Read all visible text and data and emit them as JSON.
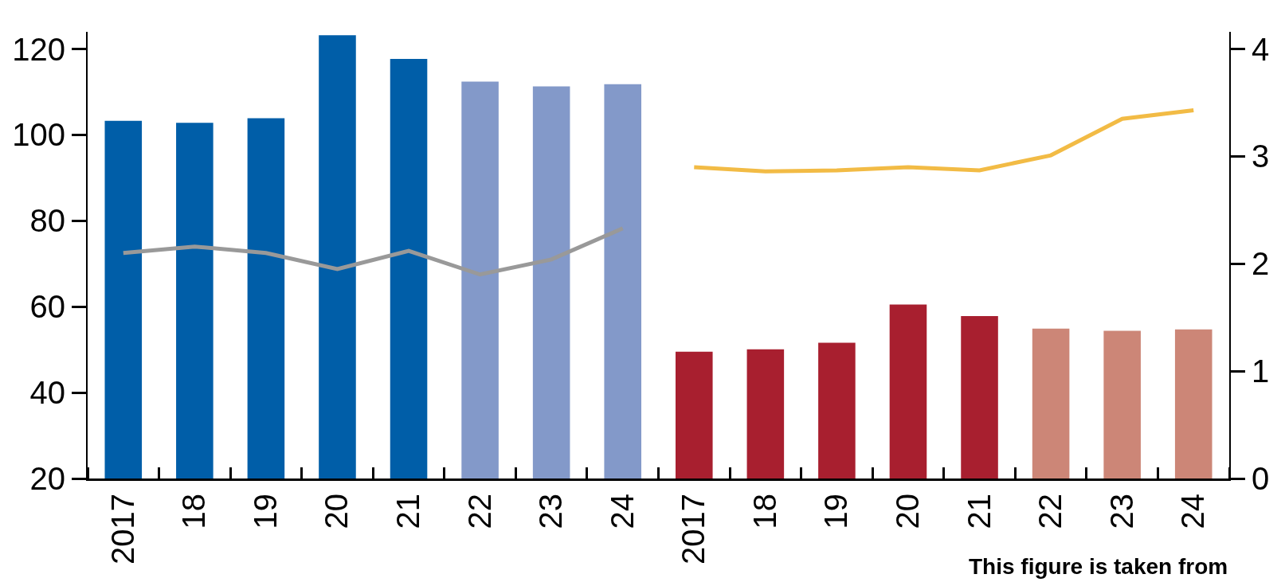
{
  "chart_data": {
    "type": "bar",
    "categories": [
      "2017",
      "18",
      "19",
      "20",
      "21",
      "22",
      "23",
      "24",
      "2017",
      "18",
      "19",
      "20",
      "21",
      "22",
      "23",
      "24"
    ],
    "series": [
      {
        "type": "bar",
        "colors": [
          "#005ea8",
          "#005ea8",
          "#005ea8",
          "#005ea8",
          "#005ea8",
          "#8399c9",
          "#8399c9",
          "#8399c9",
          "#a81f2f",
          "#a81f2f",
          "#a81f2f",
          "#a81f2f",
          "#a81f2f",
          "#cc8677",
          "#cc8677",
          "#cc8677"
        ],
        "values": [
          103.3,
          102.8,
          103.9,
          123.2,
          117.7,
          112.4,
          111.3,
          111.8,
          49.5,
          50.1,
          51.6,
          60.5,
          57.8,
          54.9,
          54.4,
          54.7
        ]
      },
      {
        "type": "line",
        "axis": "y2",
        "color": "#999999",
        "values": [
          2.1,
          2.16,
          2.1,
          1.95,
          2.12,
          1.9,
          2.04,
          2.33,
          null,
          null,
          null,
          null,
          null,
          null,
          null,
          null
        ]
      },
      {
        "type": "line",
        "axis": "y2",
        "color": "#f2bb45",
        "values": [
          null,
          null,
          null,
          null,
          null,
          null,
          null,
          null,
          2.9,
          2.86,
          2.87,
          2.9,
          2.87,
          3.01,
          3.35,
          3.43
        ]
      }
    ],
    "ylim": [
      20,
      124
    ],
    "yticks": [
      20,
      40,
      60,
      80,
      100,
      120
    ],
    "y2lim": [
      0,
      4.16
    ],
    "y2ticks": [
      0,
      1,
      2,
      3,
      4
    ],
    "legend": false,
    "marker": "none",
    "annotations": [
      "This figure is taken from"
    ]
  }
}
